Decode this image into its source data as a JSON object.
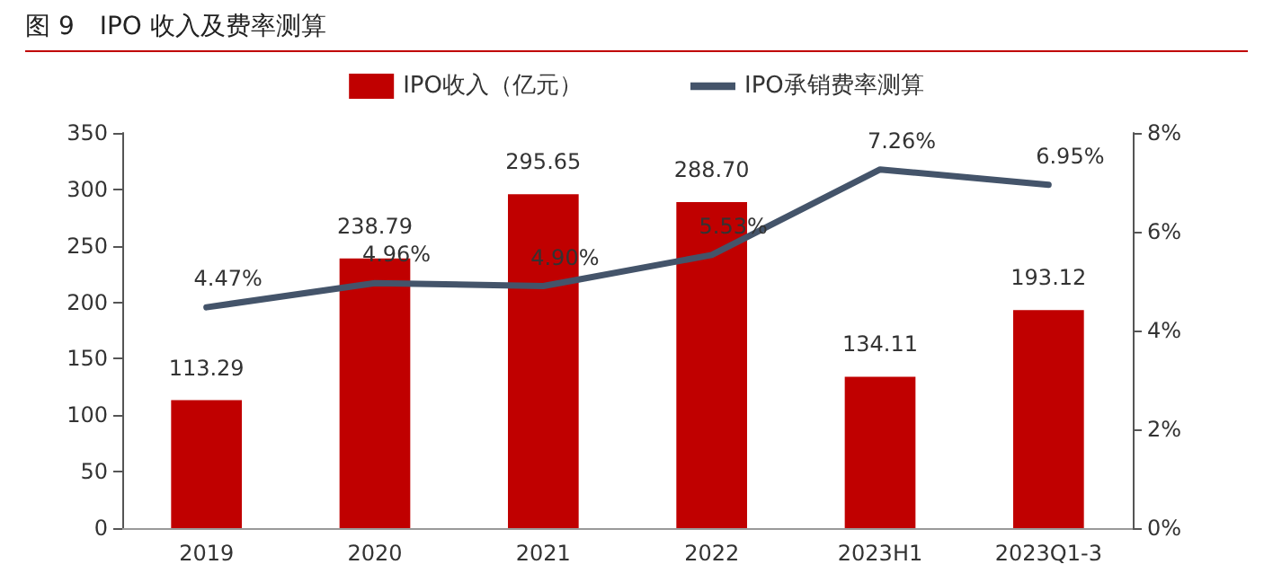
{
  "chart_data": {
    "type": "bar",
    "title": "图 9　IPO 收入及费率测算",
    "categories": [
      "2019",
      "2020",
      "2021",
      "2022",
      "2023H1",
      "2023Q1-3"
    ],
    "series": [
      {
        "name": "IPO收入（亿元）",
        "color": "#c00000",
        "values": [
          113.29,
          238.79,
          295.65,
          288.7,
          134.11,
          193.12
        ],
        "value_labels": [
          "113.29",
          "238.79",
          "295.65",
          "288.70",
          "134.11",
          "193.12"
        ]
      },
      {
        "name": "IPO承销费率测算",
        "type": "line",
        "axis": "y2",
        "color": "#44546a",
        "marker": "none",
        "values": [
          4.47,
          4.96,
          4.9,
          5.53,
          7.26,
          6.95
        ],
        "value_labels": [
          "4.47%",
          "4.96%",
          "4.90%",
          "5.53%",
          "7.26%",
          "6.95%"
        ]
      }
    ],
    "ylim": [
      0,
      350
    ],
    "yticks": [
      0,
      50,
      100,
      150,
      200,
      250,
      300,
      350
    ],
    "y2lim": [
      0,
      8
    ],
    "y2ticks": [
      {
        "value": 0,
        "label": "0%"
      },
      {
        "value": 2,
        "label": "2%"
      },
      {
        "value": 4,
        "label": "4%"
      },
      {
        "value": 6,
        "label": "6%"
      },
      {
        "value": 8,
        "label": "8%"
      }
    ],
    "grid": false,
    "legend": "top"
  }
}
